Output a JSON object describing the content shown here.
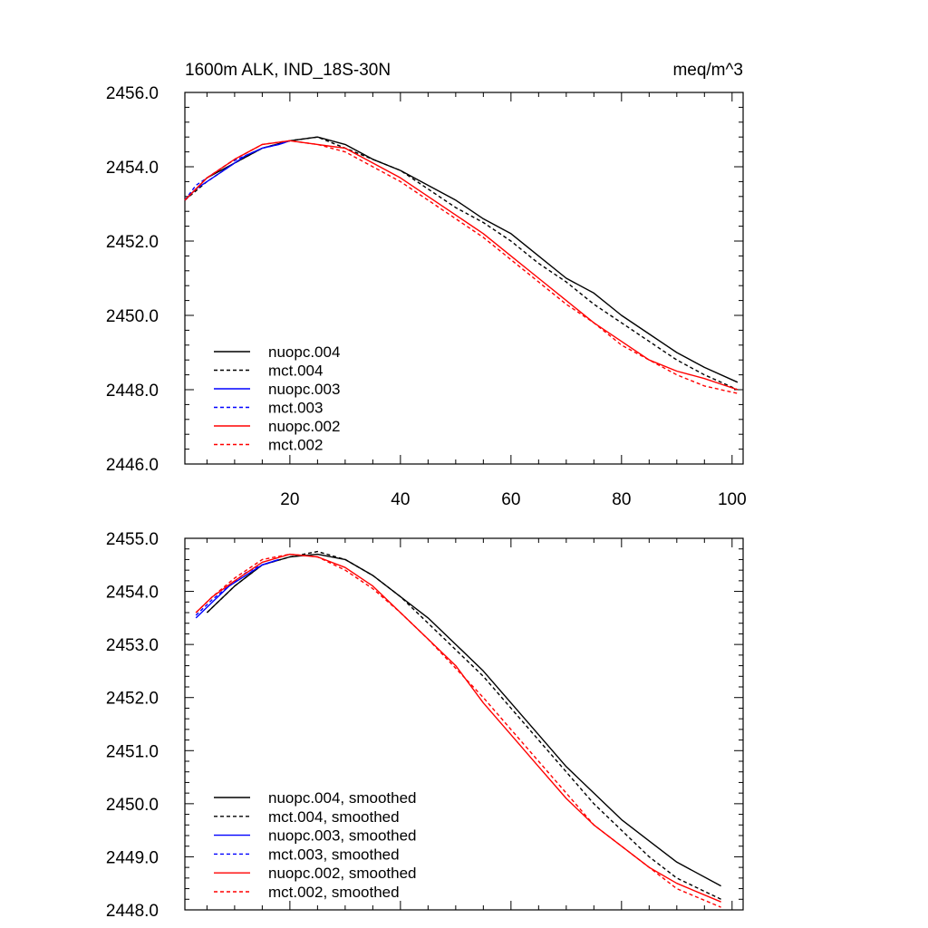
{
  "figure_title": "1600m ALK, IND_18S-30N",
  "units": "meq/m^3",
  "chart_data": [
    {
      "type": "line",
      "panel": "top",
      "title": "1600m ALK, IND_18S-30N",
      "units": "meq/m^3",
      "xlim": [
        1,
        102
      ],
      "ylim": [
        2446.0,
        2456.0
      ],
      "xticks": [
        20,
        40,
        60,
        80,
        100
      ],
      "xtick_labels": [
        "20",
        "40",
        "60",
        "80",
        "100"
      ],
      "yticks": [
        2446.0,
        2448.0,
        2450.0,
        2452.0,
        2454.0,
        2456.0
      ],
      "ytick_labels": [
        "2446.0",
        "2448.0",
        "2450.0",
        "2452.0",
        "2454.0",
        "2456.0"
      ],
      "grid": false,
      "legend_position": "bottom-left",
      "series": [
        {
          "name": "nuopc.004",
          "color": "#000000",
          "style": "solid",
          "x": [
            1,
            5,
            10,
            15,
            20,
            25,
            30,
            35,
            40,
            45,
            50,
            55,
            60,
            65,
            70,
            75,
            80,
            85,
            90,
            95,
            101
          ],
          "y": [
            2453.1,
            2453.7,
            2454.1,
            2454.5,
            2454.7,
            2454.8,
            2454.6,
            2454.2,
            2453.9,
            2453.5,
            2453.1,
            2452.6,
            2452.2,
            2451.6,
            2451.0,
            2450.6,
            2450.0,
            2449.5,
            2449.0,
            2448.6,
            2448.2
          ]
        },
        {
          "name": "mct.004",
          "color": "#000000",
          "style": "dashed",
          "x": [
            1,
            5,
            10,
            15,
            20,
            25,
            30,
            35,
            40,
            45,
            50,
            55,
            60,
            65,
            70,
            75,
            80,
            85,
            90,
            95,
            101
          ],
          "y": [
            2453.1,
            2453.6,
            2454.1,
            2454.5,
            2454.7,
            2454.8,
            2454.5,
            2454.2,
            2453.9,
            2453.4,
            2452.9,
            2452.5,
            2452.0,
            2451.4,
            2450.9,
            2450.3,
            2449.8,
            2449.3,
            2448.8,
            2448.4,
            2448.0
          ]
        },
        {
          "name": "nuopc.003",
          "color": "#0000ff",
          "style": "solid",
          "x": [
            1,
            3,
            6,
            9,
            12,
            15,
            18,
            20
          ],
          "y": [
            2453.1,
            2453.4,
            2453.7,
            2454.0,
            2454.3,
            2454.5,
            2454.6,
            2454.7
          ]
        },
        {
          "name": "mct.003",
          "color": "#0000ff",
          "style": "dashed",
          "x": [
            1,
            3,
            6,
            9,
            12,
            15,
            18,
            20
          ],
          "y": [
            2453.1,
            2453.5,
            2453.8,
            2454.1,
            2454.3,
            2454.5,
            2454.6,
            2454.7
          ]
        },
        {
          "name": "nuopc.002",
          "color": "#ff0000",
          "style": "solid",
          "x": [
            1,
            5,
            10,
            15,
            20,
            25,
            30,
            35,
            40,
            45,
            50,
            55,
            60,
            65,
            70,
            75,
            80,
            85,
            90,
            95,
            101
          ],
          "y": [
            2453.1,
            2453.7,
            2454.2,
            2454.6,
            2454.7,
            2454.6,
            2454.5,
            2454.1,
            2453.7,
            2453.2,
            2452.7,
            2452.2,
            2451.6,
            2451.0,
            2450.4,
            2449.8,
            2449.3,
            2448.8,
            2448.5,
            2448.3,
            2448.0
          ]
        },
        {
          "name": "mct.002",
          "color": "#ff0000",
          "style": "dashed",
          "x": [
            1,
            5,
            10,
            15,
            20,
            25,
            30,
            35,
            40,
            45,
            50,
            55,
            60,
            65,
            70,
            75,
            80,
            85,
            90,
            95,
            101
          ],
          "y": [
            2453.1,
            2453.7,
            2454.2,
            2454.6,
            2454.7,
            2454.6,
            2454.4,
            2454.0,
            2453.6,
            2453.1,
            2452.6,
            2452.1,
            2451.5,
            2450.9,
            2450.3,
            2449.8,
            2449.2,
            2448.8,
            2448.4,
            2448.1,
            2447.9
          ]
        }
      ]
    },
    {
      "type": "line",
      "panel": "bottom",
      "xlim": [
        1,
        102
      ],
      "ylim": [
        2448.0,
        2455.0
      ],
      "xticks": [
        20,
        40,
        60,
        80,
        100
      ],
      "xtick_labels": [],
      "yticks": [
        2448.0,
        2449.0,
        2450.0,
        2451.0,
        2452.0,
        2453.0,
        2454.0,
        2455.0
      ],
      "ytick_labels": [
        "2448.0",
        "2449.0",
        "2450.0",
        "2451.0",
        "2452.0",
        "2453.0",
        "2454.0",
        "2455.0"
      ],
      "grid": false,
      "legend_position": "bottom-left",
      "series": [
        {
          "name": "nuopc.004, smoothed",
          "color": "#000000",
          "style": "solid",
          "x": [
            5,
            10,
            15,
            20,
            25,
            30,
            35,
            40,
            45,
            50,
            55,
            60,
            65,
            70,
            75,
            80,
            85,
            90,
            98
          ],
          "y": [
            2453.6,
            2454.1,
            2454.5,
            2454.65,
            2454.7,
            2454.6,
            2454.3,
            2453.9,
            2453.5,
            2453.0,
            2452.5,
            2451.9,
            2451.3,
            2450.7,
            2450.2,
            2449.7,
            2449.3,
            2448.9,
            2448.45
          ]
        },
        {
          "name": "mct.004, smoothed",
          "color": "#000000",
          "style": "dashed",
          "x": [
            5,
            10,
            15,
            20,
            25,
            30,
            35,
            40,
            45,
            50,
            55,
            60,
            65,
            70,
            75,
            80,
            85,
            90,
            98
          ],
          "y": [
            2453.6,
            2454.1,
            2454.5,
            2454.65,
            2454.75,
            2454.6,
            2454.3,
            2453.9,
            2453.4,
            2452.9,
            2452.4,
            2451.8,
            2451.2,
            2450.6,
            2450.0,
            2449.5,
            2449.0,
            2448.6,
            2448.2
          ]
        },
        {
          "name": "nuopc.003, smoothed",
          "color": "#0000ff",
          "style": "solid",
          "x": [
            3,
            6,
            9,
            12,
            15,
            18
          ],
          "y": [
            2453.5,
            2453.8,
            2454.1,
            2454.3,
            2454.5,
            2454.6
          ]
        },
        {
          "name": "mct.003, smoothed",
          "color": "#0000ff",
          "style": "dashed",
          "x": [
            3,
            6,
            9,
            12,
            15,
            18
          ],
          "y": [
            2453.55,
            2453.85,
            2454.1,
            2454.35,
            2454.5,
            2454.6
          ]
        },
        {
          "name": "nuopc.002, smoothed",
          "color": "#ff0000",
          "style": "solid",
          "x": [
            3,
            6,
            10,
            15,
            20,
            25,
            30,
            35,
            40,
            45,
            50,
            55,
            60,
            65,
            70,
            75,
            80,
            85,
            90,
            98
          ],
          "y": [
            2453.6,
            2453.9,
            2454.2,
            2454.55,
            2454.7,
            2454.65,
            2454.45,
            2454.1,
            2453.6,
            2453.1,
            2452.6,
            2451.9,
            2451.3,
            2450.7,
            2450.1,
            2449.6,
            2449.2,
            2448.8,
            2448.5,
            2448.15
          ]
        },
        {
          "name": "mct.002, smoothed",
          "color": "#ff0000",
          "style": "dashed",
          "x": [
            3,
            6,
            10,
            15,
            20,
            25,
            30,
            35,
            40,
            45,
            50,
            55,
            60,
            65,
            70,
            75,
            80,
            85,
            90,
            98
          ],
          "y": [
            2453.6,
            2453.9,
            2454.25,
            2454.6,
            2454.7,
            2454.65,
            2454.4,
            2454.05,
            2453.6,
            2453.1,
            2452.55,
            2452.0,
            2451.4,
            2450.8,
            2450.2,
            2449.6,
            2449.2,
            2448.8,
            2448.4,
            2448.05
          ]
        }
      ]
    }
  ]
}
